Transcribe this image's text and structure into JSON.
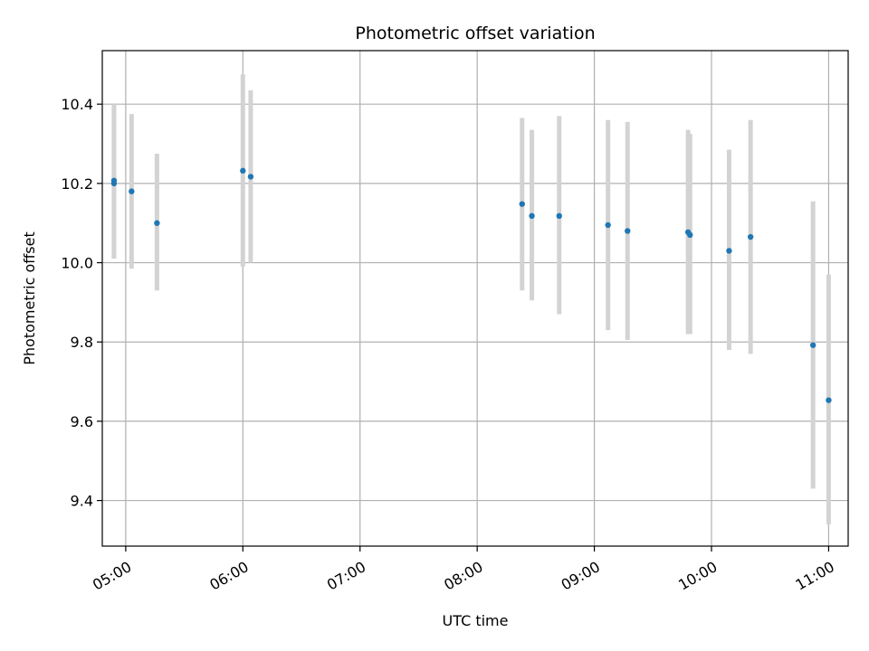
{
  "chart_data": {
    "type": "scatter",
    "title": "Photometric offset variation",
    "xlabel": "UTC time",
    "ylabel": "Photometric offset",
    "x_is_time": true,
    "xlim": [
      "04:48",
      "11:10"
    ],
    "ylim": [
      9.285,
      10.535
    ],
    "grid": true,
    "x_ticks": [
      "05:00",
      "06:00",
      "07:00",
      "08:00",
      "09:00",
      "10:00",
      "11:00"
    ],
    "y_ticks": [
      9.4,
      9.6,
      9.8,
      10.0,
      10.2,
      10.4
    ],
    "y_tick_labels": [
      "9.4",
      "9.6",
      "9.8",
      "10.0",
      "10.2",
      "10.4"
    ],
    "point_color": "#1f77b4",
    "errorbar_color": "#d3d3d3",
    "points": [
      {
        "time": "04:54",
        "y": 10.207,
        "lo": 10.015,
        "hi": 10.4
      },
      {
        "time": "04:54",
        "y": 10.2,
        "lo": 10.01,
        "hi": 10.395
      },
      {
        "time": "05:03",
        "y": 10.18,
        "lo": 9.985,
        "hi": 10.375
      },
      {
        "time": "05:16",
        "y": 10.1,
        "lo": 9.93,
        "hi": 10.275
      },
      {
        "time": "06:00",
        "y": 10.232,
        "lo": 9.99,
        "hi": 10.475
      },
      {
        "time": "06:04",
        "y": 10.217,
        "lo": 10.0,
        "hi": 10.435
      },
      {
        "time": "08:23",
        "y": 10.148,
        "lo": 9.93,
        "hi": 10.365
      },
      {
        "time": "08:28",
        "y": 10.118,
        "lo": 9.905,
        "hi": 10.335
      },
      {
        "time": "08:42",
        "y": 10.118,
        "lo": 9.87,
        "hi": 10.37
      },
      {
        "time": "09:07",
        "y": 10.095,
        "lo": 9.83,
        "hi": 10.36
      },
      {
        "time": "09:17",
        "y": 10.08,
        "lo": 9.805,
        "hi": 10.355
      },
      {
        "time": "09:48",
        "y": 10.077,
        "lo": 9.82,
        "hi": 10.335
      },
      {
        "time": "09:49",
        "y": 10.07,
        "lo": 9.82,
        "hi": 10.325
      },
      {
        "time": "10:09",
        "y": 10.03,
        "lo": 9.78,
        "hi": 10.285
      },
      {
        "time": "10:20",
        "y": 10.065,
        "lo": 9.77,
        "hi": 10.36
      },
      {
        "time": "10:52",
        "y": 9.792,
        "lo": 9.43,
        "hi": 10.155
      },
      {
        "time": "11:00",
        "y": 9.653,
        "lo": 9.34,
        "hi": 9.97
      }
    ]
  }
}
